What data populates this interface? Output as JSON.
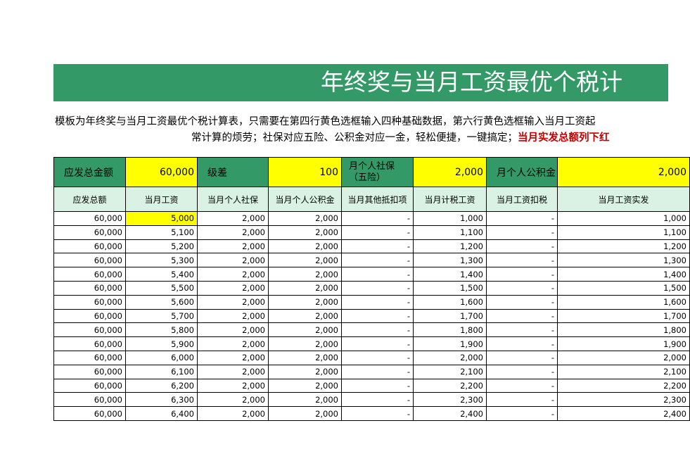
{
  "title": "年终奖与当月工资最优个税计",
  "description": {
    "line1": "模板为年终奖与当月工资最优个税计算表，只需要在第四行黄色选框输入四种基础数据，第六行黄色选框输入当月工资起",
    "line2_normal": "常计算的烦劳；社保对应五险、公积金对应一金，轻松便捷，一键搞定；",
    "line2_red": "当月实发总额列下红"
  },
  "inputs": {
    "total_label": "应发总金额",
    "total_value": "60,000",
    "step_label": "级差",
    "step_value": "100",
    "social_label": "月个人社保（五险）",
    "social_value": "2,000",
    "fund_label": "月个人公积金",
    "fund_value": "2,000"
  },
  "headers": [
    "应发总额",
    "当月工资",
    "当月个人社保",
    "当月个人公积金",
    "当月其他抵扣项",
    "当月计税工资",
    "当月工资扣税",
    "当月工资实发"
  ],
  "rows": [
    [
      "60,000",
      "5,000",
      "2,000",
      "2,000",
      "-",
      "1,000",
      "-",
      "1,000"
    ],
    [
      "60,000",
      "5,100",
      "2,000",
      "2,000",
      "-",
      "1,100",
      "-",
      "1,100"
    ],
    [
      "60,000",
      "5,200",
      "2,000",
      "2,000",
      "-",
      "1,200",
      "-",
      "1,200"
    ],
    [
      "60,000",
      "5,300",
      "2,000",
      "2,000",
      "-",
      "1,300",
      "-",
      "1,300"
    ],
    [
      "60,000",
      "5,400",
      "2,000",
      "2,000",
      "-",
      "1,400",
      "-",
      "1,400"
    ],
    [
      "60,000",
      "5,500",
      "2,000",
      "2,000",
      "-",
      "1,500",
      "-",
      "1,500"
    ],
    [
      "60,000",
      "5,600",
      "2,000",
      "2,000",
      "-",
      "1,600",
      "-",
      "1,600"
    ],
    [
      "60,000",
      "5,700",
      "2,000",
      "2,000",
      "-",
      "1,700",
      "-",
      "1,700"
    ],
    [
      "60,000",
      "5,800",
      "2,000",
      "2,000",
      "-",
      "1,800",
      "-",
      "1,800"
    ],
    [
      "60,000",
      "5,900",
      "2,000",
      "2,000",
      "-",
      "1,900",
      "-",
      "1,900"
    ],
    [
      "60,000",
      "6,000",
      "2,000",
      "2,000",
      "-",
      "2,000",
      "-",
      "2,000"
    ],
    [
      "60,000",
      "6,100",
      "2,000",
      "2,000",
      "-",
      "2,100",
      "-",
      "2,100"
    ],
    [
      "60,000",
      "6,200",
      "2,000",
      "2,000",
      "-",
      "2,200",
      "-",
      "2,200"
    ],
    [
      "60,000",
      "6,300",
      "2,000",
      "2,000",
      "-",
      "2,300",
      "-",
      "2,300"
    ],
    [
      "60,000",
      "6,400",
      "2,000",
      "2,000",
      "-",
      "2,400",
      "-",
      "2,400"
    ]
  ],
  "colors": {
    "title_bg": "#339966",
    "header_bg": "#d9f2e3",
    "input_bg": "#ffff00",
    "emphasis": "#c00000"
  }
}
